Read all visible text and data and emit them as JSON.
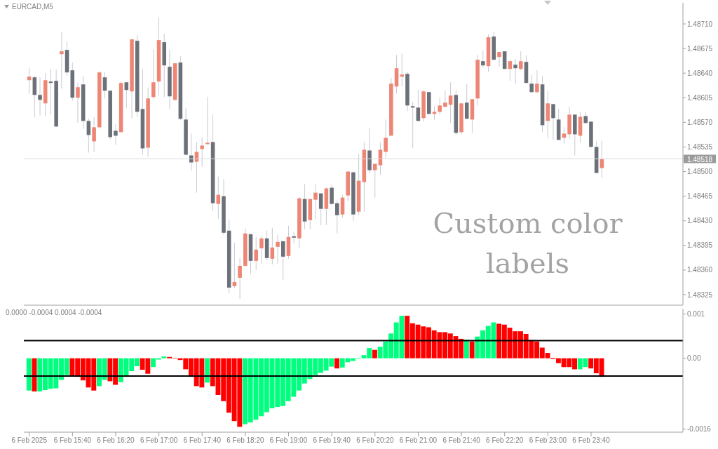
{
  "chart_data": [
    {
      "type": "candlestick",
      "title": "EURCAD,M5",
      "tick_labels": "y",
      "x": [
        "2025-02-06T15:00",
        "2025-02-06T15:05",
        "2025-02-06T15:10",
        "2025-02-06T15:15",
        "2025-02-06T15:20",
        "2025-02-06T15:25",
        "2025-02-06T15:30",
        "2025-02-06T15:35",
        "2025-02-06T15:40",
        "2025-02-06T15:45",
        "2025-02-06T15:50",
        "2025-02-06T15:55",
        "2025-02-06T16:00",
        "2025-02-06T16:05",
        "2025-02-06T16:10",
        "2025-02-06T16:15",
        "2025-02-06T16:20",
        "2025-02-06T16:25",
        "2025-02-06T16:30",
        "2025-02-06T16:35",
        "2025-02-06T16:40",
        "2025-02-06T16:45",
        "2025-02-06T16:50",
        "2025-02-06T16:55",
        "2025-02-06T17:00",
        "2025-02-06T17:05",
        "2025-02-06T17:10",
        "2025-02-06T17:15",
        "2025-02-06T17:20",
        "2025-02-06T17:25",
        "2025-02-06T17:30",
        "2025-02-06T17:35",
        "2025-02-06T17:40",
        "2025-02-06T17:45",
        "2025-02-06T17:50",
        "2025-02-06T17:55",
        "2025-02-06T18:00",
        "2025-02-06T18:05",
        "2025-02-06T18:10",
        "2025-02-06T18:15",
        "2025-02-06T18:20",
        "2025-02-06T18:25",
        "2025-02-06T18:30",
        "2025-02-06T18:35",
        "2025-02-06T18:40",
        "2025-02-06T18:45",
        "2025-02-06T18:50",
        "2025-02-06T18:55",
        "2025-02-06T19:00",
        "2025-02-06T19:05",
        "2025-02-06T19:10",
        "2025-02-06T19:15",
        "2025-02-06T19:20",
        "2025-02-06T19:25",
        "2025-02-06T19:30",
        "2025-02-06T19:35",
        "2025-02-06T19:40",
        "2025-02-06T19:45",
        "2025-02-06T19:50",
        "2025-02-06T19:55",
        "2025-02-06T20:00",
        "2025-02-06T20:05",
        "2025-02-06T20:10",
        "2025-02-06T20:15",
        "2025-02-06T20:20",
        "2025-02-06T20:25",
        "2025-02-06T20:30",
        "2025-02-06T20:35",
        "2025-02-06T20:40",
        "2025-02-06T20:45",
        "2025-02-06T20:50",
        "2025-02-06T20:55",
        "2025-02-06T21:00",
        "2025-02-06T21:05",
        "2025-02-06T21:10",
        "2025-02-06T21:15",
        "2025-02-06T21:20",
        "2025-02-06T21:25",
        "2025-02-06T21:30",
        "2025-02-06T21:35",
        "2025-02-06T21:40",
        "2025-02-06T21:45",
        "2025-02-06T21:50",
        "2025-02-06T21:55",
        "2025-02-06T22:00",
        "2025-02-06T22:05",
        "2025-02-06T22:10",
        "2025-02-06T22:15",
        "2025-02-06T22:20",
        "2025-02-06T22:25",
        "2025-02-06T22:30",
        "2025-02-06T22:35",
        "2025-02-06T22:40",
        "2025-02-06T22:45",
        "2025-02-06T22:50",
        "2025-02-06T22:55",
        "2025-02-06T23:00",
        "2025-02-06T23:05",
        "2025-02-06T23:10",
        "2025-02-06T23:15",
        "2025-02-06T23:20",
        "2025-02-06T23:25",
        "2025-02-06T23:30",
        "2025-02-06T23:35",
        "2025-02-06T23:40",
        "2025-02-06T23:45",
        "2025-02-06T23:50"
      ],
      "ohlc": [
        [
          1.4863,
          1.48648,
          1.48611,
          1.48635
        ],
        [
          1.48634,
          1.48636,
          1.48577,
          1.48609
        ],
        [
          1.48609,
          1.48634,
          1.4858,
          1.48602
        ],
        [
          1.48597,
          1.4864,
          1.48579,
          1.4863
        ],
        [
          1.48628,
          1.48646,
          1.48581,
          1.48626
        ],
        [
          1.48629,
          1.48645,
          1.48564,
          1.48564
        ],
        [
          1.48667,
          1.48699,
          1.48618,
          1.48671
        ],
        [
          1.48673,
          1.48685,
          1.48636,
          1.48641
        ],
        [
          1.48644,
          1.48655,
          1.48601,
          1.48605
        ],
        [
          1.48605,
          1.48626,
          1.48569,
          1.4862
        ],
        [
          1.48624,
          1.48636,
          1.48561,
          1.48572
        ],
        [
          1.48572,
          1.48575,
          1.48527,
          1.48552
        ],
        [
          1.48543,
          1.48577,
          1.48528,
          1.48563
        ],
        [
          1.48563,
          1.48643,
          1.48561,
          1.48641
        ],
        [
          1.48634,
          1.48642,
          1.48604,
          1.48615
        ],
        [
          1.48615,
          1.48615,
          1.48546,
          1.48549
        ],
        [
          1.48558,
          1.48567,
          1.48538,
          1.48551
        ],
        [
          1.48556,
          1.48628,
          1.48556,
          1.48626
        ],
        [
          1.48627,
          1.48627,
          1.4859,
          1.48616
        ],
        [
          1.48614,
          1.48689,
          1.48576,
          1.48688
        ],
        [
          1.48686,
          1.48694,
          1.48578,
          1.48585
        ],
        [
          1.48589,
          1.48646,
          1.48524,
          1.48533
        ],
        [
          1.48534,
          1.48619,
          1.48521,
          1.48604
        ],
        [
          1.48606,
          1.48674,
          1.48603,
          1.48627
        ],
        [
          1.48628,
          1.48719,
          1.48608,
          1.48687
        ],
        [
          1.48684,
          1.48696,
          1.48606,
          1.48651
        ],
        [
          1.48649,
          1.48673,
          1.48589,
          1.48607
        ],
        [
          1.48602,
          1.48654,
          1.486,
          1.48654
        ],
        [
          1.48655,
          1.48664,
          1.48573,
          1.48575
        ],
        [
          1.48574,
          1.4859,
          1.48523,
          1.48524
        ],
        [
          1.48523,
          1.48554,
          1.48501,
          1.48513
        ],
        [
          1.48514,
          1.48542,
          1.4847,
          1.48528
        ],
        [
          1.48532,
          1.48549,
          1.48507,
          1.48537
        ],
        [
          1.48539,
          1.48606,
          1.48538,
          1.48541
        ],
        [
          1.48542,
          1.48581,
          1.48444,
          1.48455
        ],
        [
          1.48454,
          1.48493,
          1.48433,
          1.48467
        ],
        [
          1.48465,
          1.48489,
          1.4841,
          1.48413
        ],
        [
          1.48416,
          1.48432,
          1.48327,
          1.48335
        ],
        [
          1.48337,
          1.48399,
          1.48334,
          1.48343
        ],
        [
          1.48349,
          1.48377,
          1.48319,
          1.48366
        ],
        [
          1.48366,
          1.48419,
          1.48364,
          1.48412
        ],
        [
          1.48411,
          1.48411,
          1.48354,
          1.48373
        ],
        [
          1.48373,
          1.48407,
          1.4836,
          1.48389
        ],
        [
          1.48391,
          1.48408,
          1.48369,
          1.48405
        ],
        [
          1.48405,
          1.48416,
          1.48374,
          1.48377
        ],
        [
          1.48376,
          1.4842,
          1.48368,
          1.48392
        ],
        [
          1.48393,
          1.4841,
          1.48369,
          1.484
        ],
        [
          1.48401,
          1.48401,
          1.48346,
          1.48379
        ],
        [
          1.4838,
          1.48423,
          1.48376,
          1.48407
        ],
        [
          1.48408,
          1.48414,
          1.48398,
          1.48406
        ],
        [
          1.48405,
          1.48464,
          1.48392,
          1.48462
        ],
        [
          1.48461,
          1.48482,
          1.48418,
          1.48429
        ],
        [
          1.48431,
          1.48461,
          1.48418,
          1.48461
        ],
        [
          1.4846,
          1.48482,
          1.48432,
          1.4847
        ],
        [
          1.48469,
          1.48469,
          1.48424,
          1.48447
        ],
        [
          1.48447,
          1.48478,
          1.48424,
          1.48476
        ],
        [
          1.48477,
          1.48481,
          1.48452,
          1.48454
        ],
        [
          1.48455,
          1.48459,
          1.48412,
          1.48438
        ],
        [
          1.48439,
          1.48467,
          1.48434,
          1.48463
        ],
        [
          1.48466,
          1.48501,
          1.48458,
          1.485
        ],
        [
          1.48499,
          1.48499,
          1.4843,
          1.48439
        ],
        [
          1.48443,
          1.48525,
          1.48438,
          1.48487
        ],
        [
          1.48485,
          1.48542,
          1.48443,
          1.48531
        ],
        [
          1.4853,
          1.48562,
          1.48498,
          1.48502
        ],
        [
          1.48502,
          1.48511,
          1.48463,
          1.48511
        ],
        [
          1.48509,
          1.48541,
          1.48495,
          1.48531
        ],
        [
          1.48528,
          1.48574,
          1.4852,
          1.48548
        ],
        [
          1.48551,
          1.48633,
          1.48551,
          1.48625
        ],
        [
          1.48621,
          1.48666,
          1.48611,
          1.48647
        ],
        [
          1.48635,
          1.48668,
          1.48621,
          1.48638
        ],
        [
          1.48639,
          1.48642,
          1.48586,
          1.48594
        ],
        [
          1.48593,
          1.48599,
          1.48533,
          1.48591
        ],
        [
          1.48591,
          1.48616,
          1.48571,
          1.48572
        ],
        [
          1.48576,
          1.48616,
          1.48571,
          1.48614
        ],
        [
          1.48613,
          1.48614,
          1.48581,
          1.48582
        ],
        [
          1.48582,
          1.48593,
          1.48573,
          1.48585
        ],
        [
          1.48585,
          1.48605,
          1.48581,
          1.48594
        ],
        [
          1.48592,
          1.48615,
          1.48592,
          1.48598
        ],
        [
          1.48595,
          1.48627,
          1.48569,
          1.48608
        ],
        [
          1.48609,
          1.48615,
          1.48552,
          1.48555
        ],
        [
          1.48556,
          1.48597,
          1.48553,
          1.48597
        ],
        [
          1.48598,
          1.48624,
          1.48575,
          1.48575
        ],
        [
          1.48574,
          1.48603,
          1.48555,
          1.48603
        ],
        [
          1.48604,
          1.48666,
          1.48594,
          1.48659
        ],
        [
          1.48657,
          1.48672,
          1.48648,
          1.48651
        ],
        [
          1.4865,
          1.48695,
          1.48642,
          1.48691
        ],
        [
          1.48692,
          1.48699,
          1.48659,
          1.48659
        ],
        [
          1.48663,
          1.4867,
          1.48649,
          1.4867
        ],
        [
          1.48671,
          1.48671,
          1.48646,
          1.48646
        ],
        [
          1.48646,
          1.48659,
          1.48629,
          1.48657
        ],
        [
          1.48652,
          1.4866,
          1.48625,
          1.48647
        ],
        [
          1.48646,
          1.48671,
          1.48644,
          1.48657
        ],
        [
          1.48656,
          1.48665,
          1.48626,
          1.48626
        ],
        [
          1.48625,
          1.48637,
          1.48612,
          1.48613
        ],
        [
          1.48613,
          1.48644,
          1.48611,
          1.48625
        ],
        [
          1.48624,
          1.48636,
          1.48556,
          1.48566
        ],
        [
          1.48572,
          1.48615,
          1.48547,
          1.48597
        ],
        [
          1.48596,
          1.48596,
          1.48545,
          1.48576
        ],
        [
          1.48574,
          1.48589,
          1.48545,
          1.48545
        ],
        [
          1.48548,
          1.48563,
          1.4854,
          1.48554
        ],
        [
          1.48553,
          1.48592,
          1.48547,
          1.48581
        ],
        [
          1.48581,
          1.48581,
          1.48523,
          1.48553
        ],
        [
          1.48551,
          1.48585,
          1.48541,
          1.48578
        ],
        [
          1.48579,
          1.48585,
          1.48569,
          1.48569
        ],
        [
          1.48571,
          1.48571,
          1.48535,
          1.48535
        ],
        [
          1.48535,
          1.48543,
          1.48498,
          1.48498
        ],
        [
          1.48505,
          1.48544,
          1.48491,
          1.48518
        ]
      ],
      "colors": [
        "#ee8675",
        "#6b7079",
        "#6b7079",
        "#ee8675",
        "#6b7079",
        "#6b7079",
        "#ee8675",
        "#6b7079",
        "#6b7079",
        "#ee8675",
        "#6b7079",
        "#6b7079",
        "#ee8675",
        "#ee8675",
        "#6b7079",
        "#6b7079",
        "#6b7079",
        "#ee8675",
        "#6b7079",
        "#ee8675",
        "#6b7079",
        "#6b7079",
        "#ee8675",
        "#ee8675",
        "#ee8675",
        "#6b7079",
        "#6b7079",
        "#ee8675",
        "#6b7079",
        "#6b7079",
        "#6b7079",
        "#ee8675",
        "#ee8675",
        "#ee8675",
        "#6b7079",
        "#ee8675",
        "#6b7079",
        "#6b7079",
        "#ee8675",
        "#ee8675",
        "#ee8675",
        "#6b7079",
        "#ee8675",
        "#ee8675",
        "#6b7079",
        "#ee8675",
        "#ee8675",
        "#6b7079",
        "#ee8675",
        "#6b7079",
        "#ee8675",
        "#6b7079",
        "#ee8675",
        "#ee8675",
        "#6b7079",
        "#ee8675",
        "#6b7079",
        "#6b7079",
        "#ee8675",
        "#ee8675",
        "#6b7079",
        "#ee8675",
        "#ee8675",
        "#6b7079",
        "#ee8675",
        "#ee8675",
        "#ee8675",
        "#ee8675",
        "#ee8675",
        "#ee8675",
        "#6b7079",
        "#6b7079",
        "#6b7079",
        "#ee8675",
        "#6b7079",
        "#ee8675",
        "#ee8675",
        "#ee8675",
        "#ee8675",
        "#6b7079",
        "#ee8675",
        "#6b7079",
        "#ee8675",
        "#ee8675",
        "#6b7079",
        "#ee8675",
        "#6b7079",
        "#ee8675",
        "#6b7079",
        "#ee8675",
        "#6b7079",
        "#ee8675",
        "#6b7079",
        "#6b7079",
        "#ee8675",
        "#6b7079",
        "#ee8675",
        "#6b7079",
        "#6b7079",
        "#ee8675",
        "#ee8675",
        "#6b7079",
        "#ee8675",
        "#6b7079",
        "#6b7079",
        "#6b7079",
        "#ee8675"
      ],
      "xlim": [
        "2025-02-06T14:55",
        "2025-02-07T01:05"
      ],
      "ylim": [
        1.4831,
        1.4874
      ],
      "yticks": [
        1.48325,
        {
          "value": 1.4836,
          "label": "1.48360"
        },
        1.48395,
        {
          "value": 1.4843,
          "label": "1.48430"
        },
        1.48465,
        {
          "value": 1.485,
          "label": "1.48500"
        },
        1.48535,
        {
          "value": 1.4857,
          "label": "1.48570"
        },
        1.48605,
        {
          "value": 1.4864,
          "label": "1.48640"
        },
        1.48675,
        {
          "value": 1.4871,
          "label": "1.48710"
        }
      ],
      "ref_lines": [
        {
          "axis": "y",
          "value": 1.48518,
          "label": "1.48518",
          "color": "#d9d9d9"
        }
      ],
      "annotations": [
        "Custom color labels"
      ]
    },
    {
      "type": "bar",
      "x": [
        "2025-02-06T15:00",
        "2025-02-06T15:05",
        "2025-02-06T15:10",
        "2025-02-06T15:15",
        "2025-02-06T15:20",
        "2025-02-06T15:25",
        "2025-02-06T15:30",
        "2025-02-06T15:35",
        "2025-02-06T15:40",
        "2025-02-06T15:45",
        "2025-02-06T15:50",
        "2025-02-06T15:55",
        "2025-02-06T16:00",
        "2025-02-06T16:05",
        "2025-02-06T16:10",
        "2025-02-06T16:15",
        "2025-02-06T16:20",
        "2025-02-06T16:25",
        "2025-02-06T16:30",
        "2025-02-06T16:35",
        "2025-02-06T16:40",
        "2025-02-06T16:45",
        "2025-02-06T16:50",
        "2025-02-06T16:55",
        "2025-02-06T17:00",
        "2025-02-06T17:05",
        "2025-02-06T17:10",
        "2025-02-06T17:15",
        "2025-02-06T17:20",
        "2025-02-06T17:25",
        "2025-02-06T17:30",
        "2025-02-06T17:35",
        "2025-02-06T17:40",
        "2025-02-06T17:45",
        "2025-02-06T17:50",
        "2025-02-06T17:55",
        "2025-02-06T18:00",
        "2025-02-06T18:05",
        "2025-02-06T18:10",
        "2025-02-06T18:15",
        "2025-02-06T18:20",
        "2025-02-06T18:25",
        "2025-02-06T18:30",
        "2025-02-06T18:35",
        "2025-02-06T18:40",
        "2025-02-06T18:45",
        "2025-02-06T18:50",
        "2025-02-06T18:55",
        "2025-02-06T19:00",
        "2025-02-06T19:05",
        "2025-02-06T19:10",
        "2025-02-06T19:15",
        "2025-02-06T19:20",
        "2025-02-06T19:25",
        "2025-02-06T19:30",
        "2025-02-06T19:35",
        "2025-02-06T19:40",
        "2025-02-06T19:45",
        "2025-02-06T19:50",
        "2025-02-06T19:55",
        "2025-02-06T20:00",
        "2025-02-06T20:05",
        "2025-02-06T20:10",
        "2025-02-06T20:15",
        "2025-02-06T20:20",
        "2025-02-06T20:25",
        "2025-02-06T20:30",
        "2025-02-06T20:35",
        "2025-02-06T20:40",
        "2025-02-06T20:45",
        "2025-02-06T20:50",
        "2025-02-06T20:55",
        "2025-02-06T21:00",
        "2025-02-06T21:05",
        "2025-02-06T21:10",
        "2025-02-06T21:15",
        "2025-02-06T21:20",
        "2025-02-06T21:25",
        "2025-02-06T21:30",
        "2025-02-06T21:35",
        "2025-02-06T21:40",
        "2025-02-06T21:45",
        "2025-02-06T21:50",
        "2025-02-06T21:55",
        "2025-02-06T22:00",
        "2025-02-06T22:05",
        "2025-02-06T22:10",
        "2025-02-06T22:15",
        "2025-02-06T22:20",
        "2025-02-06T22:25",
        "2025-02-06T22:30",
        "2025-02-06T22:35",
        "2025-02-06T22:40",
        "2025-02-06T22:45",
        "2025-02-06T22:50",
        "2025-02-06T22:55",
        "2025-02-06T23:00",
        "2025-02-06T23:05",
        "2025-02-06T23:10",
        "2025-02-06T23:15",
        "2025-02-06T23:20",
        "2025-02-06T23:25",
        "2025-02-06T23:30",
        "2025-02-06T23:35",
        "2025-02-06T23:40",
        "2025-02-06T23:45",
        "2025-02-06T23:50"
      ],
      "values": [
        -0.00073,
        -0.00075,
        -0.00075,
        -0.00072,
        -0.00069,
        -0.00068,
        -0.00049,
        -0.00038,
        -0.00039,
        -0.00042,
        -0.0005,
        -0.00066,
        -0.00073,
        -0.00063,
        -0.00049,
        -0.00052,
        -0.0006,
        -0.00054,
        -0.00042,
        -0.00029,
        -0.00018,
        -0.00026,
        -0.00035,
        -0.0002,
        -3e-05,
        4e-05,
        3e-05,
        1e-05,
        -4e-05,
        -0.00025,
        -0.00042,
        -0.00063,
        -0.00066,
        -0.00055,
        -0.00063,
        -0.00083,
        -0.00097,
        -0.00123,
        -0.00142,
        -0.00155,
        -0.00149,
        -0.00145,
        -0.00139,
        -0.00131,
        -0.00122,
        -0.00113,
        -0.0011,
        -0.00108,
        -0.00097,
        -0.00087,
        -0.00073,
        -0.00057,
        -0.00047,
        -0.00038,
        -0.00033,
        -0.00028,
        -0.00019,
        -0.00023,
        -0.00021,
        -9e-05,
        -6e-05,
        1e-05,
        7e-05,
        0.00023,
        0.00019,
        0.00026,
        0.00038,
        0.00056,
        0.00081,
        0.00096,
        0.00096,
        0.00079,
        0.00076,
        0.00072,
        0.0007,
        0.00063,
        0.00059,
        0.00059,
        0.00056,
        0.0005,
        0.00044,
        0.00042,
        0.00038,
        0.00049,
        0.00063,
        0.00073,
        0.00081,
        0.00078,
        0.00076,
        0.00069,
        0.00061,
        0.00061,
        0.00055,
        0.00041,
        0.00038,
        0.00024,
        0.00012,
        -2e-05,
        -0.00011,
        -0.0002,
        -0.0002,
        -0.00025,
        -0.00025,
        -0.0002,
        -0.00023,
        -0.00034,
        -0.00042
      ],
      "colors": [
        "#00ff7f",
        "#ff0000",
        "#00ff7f",
        "#00ff7f",
        "#00ff7f",
        "#00ff7f",
        "#00ff7f",
        "#00ff7f",
        "#ff0000",
        "#ff0000",
        "#ff0000",
        "#ff0000",
        "#ff0000",
        "#00ff7f",
        "#00ff7f",
        "#ff0000",
        "#ff0000",
        "#00ff7f",
        "#00ff7f",
        "#00ff7f",
        "#00ff7f",
        "#ff0000",
        "#ff0000",
        "#00ff7f",
        "#00ff7f",
        "#00ff7f",
        "#ff0000",
        "#ff0000",
        "#ff0000",
        "#ff0000",
        "#ff0000",
        "#ff0000",
        "#ff0000",
        "#00ff7f",
        "#ff0000",
        "#ff0000",
        "#ff0000",
        "#ff0000",
        "#ff0000",
        "#ff0000",
        "#00ff7f",
        "#00ff7f",
        "#00ff7f",
        "#00ff7f",
        "#00ff7f",
        "#00ff7f",
        "#00ff7f",
        "#00ff7f",
        "#00ff7f",
        "#00ff7f",
        "#00ff7f",
        "#00ff7f",
        "#00ff7f",
        "#00ff7f",
        "#00ff7f",
        "#00ff7f",
        "#00ff7f",
        "#ff0000",
        "#00ff7f",
        "#00ff7f",
        "#00ff7f",
        "#00ff7f",
        "#00ff7f",
        "#00ff7f",
        "#ff0000",
        "#00ff7f",
        "#00ff7f",
        "#00ff7f",
        "#00ff7f",
        "#00ff7f",
        "#ff0000",
        "#ff0000",
        "#ff0000",
        "#ff0000",
        "#ff0000",
        "#ff0000",
        "#ff0000",
        "#ff0000",
        "#ff0000",
        "#ff0000",
        "#ff0000",
        "#00ff7f",
        "#ff0000",
        "#00ff7f",
        "#00ff7f",
        "#00ff7f",
        "#00ff7f",
        "#ff0000",
        "#ff0000",
        "#ff0000",
        "#ff0000",
        "#ff0000",
        "#ff0000",
        "#ff0000",
        "#ff0000",
        "#ff0000",
        "#ff0000",
        "#ff0000",
        "#ff0000",
        "#ff0000",
        "#ff0000",
        "#ff0000",
        "#00ff7f",
        "#00ff7f",
        "#ff0000",
        "#ff0000",
        "#ff0000"
      ],
      "xlim": [
        "2025-02-06T14:55",
        "2025-02-07T01:05"
      ],
      "xticks": [
        {
          "value": "2025-02-06T15:00",
          "label": "6 Feb 2025"
        },
        {
          "value": "2025-02-06T15:40",
          "label": "6 Feb 15:40"
        },
        {
          "value": "2025-02-06T16:20",
          "label": "6 Feb 16:20"
        },
        {
          "value": "2025-02-06T17:00",
          "label": "6 Feb 17:00"
        },
        {
          "value": "2025-02-06T17:40",
          "label": "6 Feb 17:40"
        },
        {
          "value": "2025-02-06T18:20",
          "label": "6 Feb 18:20"
        },
        {
          "value": "2025-02-06T19:00",
          "label": "6 Feb 19:00"
        },
        {
          "value": "2025-02-06T19:40",
          "label": "6 Feb 19:40"
        },
        {
          "value": "2025-02-06T20:20",
          "label": "6 Feb 20:20"
        },
        {
          "value": "2025-02-06T21:00",
          "label": "6 Feb 21:00"
        },
        {
          "value": "2025-02-06T21:40",
          "label": "6 Feb 21:40"
        },
        {
          "value": "2025-02-06T22:20",
          "label": "6 Feb 22:20"
        },
        {
          "value": "2025-02-06T23:00",
          "label": "6 Feb 23:00"
        },
        {
          "value": "2025-02-06T23:40",
          "label": "6 Feb 23:40"
        }
      ],
      "ylim": [
        -0.00167,
        0.00112
      ],
      "yticks": [
        {
          "value": 0.001,
          "label": "0.001"
        },
        {
          "value": 0,
          "label": "0.00"
        },
        -0.0016
      ],
      "ref_lines": [
        {
          "axis": "y",
          "value": 0.0004,
          "color": "#000000"
        },
        {
          "axis": "y",
          "value": -0.0004,
          "color": "#000000"
        }
      ],
      "annotations": [
        "0.0000 -0.0004 0.0004 -0.0004"
      ]
    }
  ]
}
